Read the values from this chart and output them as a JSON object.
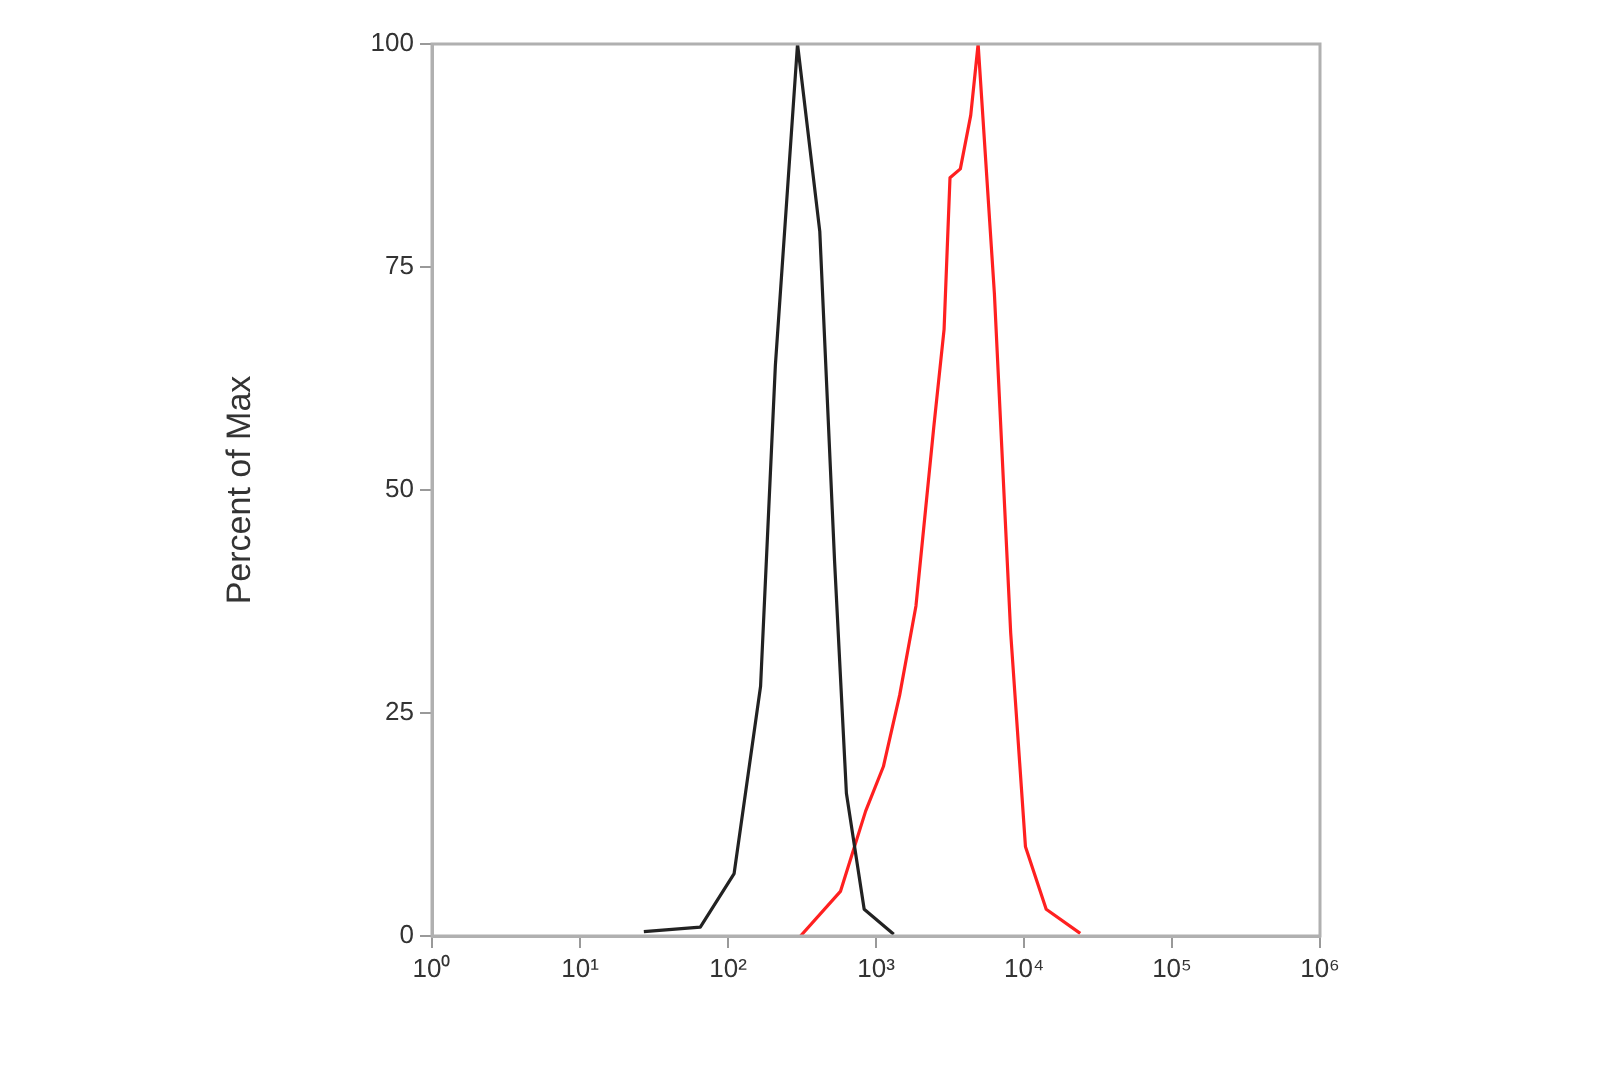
{
  "chart_data": {
    "type": "line",
    "ylabel": "Percent of Max",
    "log": "x",
    "xlim": [
      1,
      1000000
    ],
    "xticks": [
      {
        "value": 1,
        "label": "10⁰"
      },
      {
        "value": 10,
        "label": "10¹"
      },
      {
        "value": 100,
        "label": "10²"
      },
      {
        "value": 1000,
        "label": "10³"
      },
      {
        "value": 10000,
        "label": "10⁴"
      },
      {
        "value": 100000,
        "label": "10⁵"
      },
      {
        "value": 1000000,
        "label": "10⁶"
      }
    ],
    "ylim": [
      0,
      100
    ],
    "yticks": [
      0,
      25,
      50,
      75,
      100
    ],
    "grid": false,
    "legend": false,
    "marker": "none",
    "line_style": "solid",
    "series": [
      {
        "color": "#222222",
        "x": [
          27,
          65,
          110,
          166,
          209,
          295,
          417,
          525,
          631,
          832,
          1318
        ],
        "values": [
          0.5,
          1,
          7,
          28,
          64,
          100,
          79,
          42,
          16,
          3,
          0.2
        ]
      },
      {
        "color": "#ff2020",
        "x": [
          309,
          575,
          851,
          1122,
          1445,
          1862,
          2455,
          2884,
          3162,
          3715,
          4365,
          4898,
          6310,
          8128,
          10233,
          14125,
          23988
        ],
        "values": [
          0,
          5,
          14,
          19,
          27,
          37,
          57,
          68,
          85,
          86,
          92,
          100,
          72,
          34,
          10,
          3,
          0.3
        ]
      }
    ]
  }
}
